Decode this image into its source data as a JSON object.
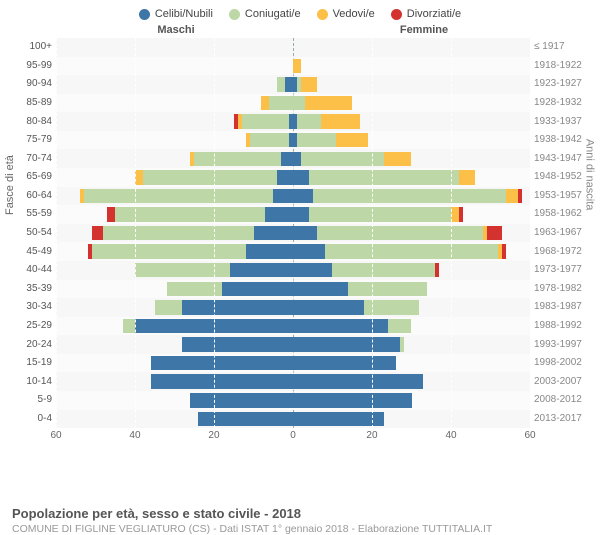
{
  "meta": {
    "title": "Popolazione per età, sesso e stato civile - 2018",
    "subtitle": "COMUNE DI FIGLINE VEGLIATURO (CS) - Dati ISTAT 1° gennaio 2018 - Elaborazione TUTTITALIA.IT",
    "male_label": "Maschi",
    "female_label": "Femmine",
    "left_axis_title": "Fasce di età",
    "right_axis_title": "Anni di nascita"
  },
  "legend": [
    {
      "label": "Celibi/Nubili",
      "color": "#3f76a8"
    },
    {
      "label": "Coniugati/e",
      "color": "#bdd8a6"
    },
    {
      "label": "Vedovi/e",
      "color": "#fcc048"
    },
    {
      "label": "Divorziati/e",
      "color": "#d4322f"
    }
  ],
  "colors": {
    "celibi": "#3f76a8",
    "coniugati": "#bdd8a6",
    "vedovi": "#fcc048",
    "divorziati": "#d4322f",
    "chart_bg": "#f7f7f7",
    "grid": "#ffffff",
    "center": "#9aa"
  },
  "x_axis": {
    "max": 60,
    "ticks": [
      60,
      40,
      20,
      0,
      20,
      40,
      60
    ]
  },
  "age_labels": [
    "100+",
    "95-99",
    "90-94",
    "85-89",
    "80-84",
    "75-79",
    "70-74",
    "65-69",
    "60-64",
    "55-59",
    "50-54",
    "45-49",
    "40-44",
    "35-39",
    "30-34",
    "25-29",
    "20-24",
    "15-19",
    "10-14",
    "5-9",
    "0-4"
  ],
  "birth_labels": [
    "≤ 1917",
    "1918-1922",
    "1923-1927",
    "1928-1932",
    "1933-1937",
    "1938-1942",
    "1943-1947",
    "1948-1952",
    "1953-1957",
    "1958-1962",
    "1963-1967",
    "1968-1972",
    "1973-1977",
    "1978-1982",
    "1983-1987",
    "1988-1992",
    "1993-1997",
    "1998-2002",
    "2003-2007",
    "2008-2012",
    "2013-2017"
  ],
  "rows": [
    {
      "m": {
        "cel": 0,
        "con": 0,
        "ved": 0,
        "div": 0
      },
      "f": {
        "cel": 0,
        "con": 0,
        "ved": 0,
        "div": 0
      }
    },
    {
      "m": {
        "cel": 0,
        "con": 0,
        "ved": 0,
        "div": 0
      },
      "f": {
        "cel": 0,
        "con": 0,
        "ved": 2,
        "div": 0
      }
    },
    {
      "m": {
        "cel": 2,
        "con": 2,
        "ved": 0,
        "div": 0
      },
      "f": {
        "cel": 1,
        "con": 1,
        "ved": 4,
        "div": 0
      }
    },
    {
      "m": {
        "cel": 0,
        "con": 6,
        "ved": 2,
        "div": 0
      },
      "f": {
        "cel": 0,
        "con": 3,
        "ved": 12,
        "div": 0
      }
    },
    {
      "m": {
        "cel": 1,
        "con": 12,
        "ved": 1,
        "div": 1
      },
      "f": {
        "cel": 1,
        "con": 6,
        "ved": 10,
        "div": 0
      }
    },
    {
      "m": {
        "cel": 1,
        "con": 10,
        "ved": 1,
        "div": 0
      },
      "f": {
        "cel": 1,
        "con": 10,
        "ved": 8,
        "div": 0
      }
    },
    {
      "m": {
        "cel": 3,
        "con": 22,
        "ved": 1,
        "div": 0
      },
      "f": {
        "cel": 2,
        "con": 21,
        "ved": 7,
        "div": 0
      }
    },
    {
      "m": {
        "cel": 4,
        "con": 34,
        "ved": 2,
        "div": 0
      },
      "f": {
        "cel": 4,
        "con": 38,
        "ved": 4,
        "div": 0
      }
    },
    {
      "m": {
        "cel": 5,
        "con": 48,
        "ved": 1,
        "div": 0
      },
      "f": {
        "cel": 5,
        "con": 49,
        "ved": 3,
        "div": 1
      }
    },
    {
      "m": {
        "cel": 7,
        "con": 38,
        "ved": 0,
        "div": 2
      },
      "f": {
        "cel": 4,
        "con": 36,
        "ved": 2,
        "div": 1
      }
    },
    {
      "m": {
        "cel": 10,
        "con": 38,
        "ved": 0,
        "div": 3
      },
      "f": {
        "cel": 6,
        "con": 42,
        "ved": 1,
        "div": 4
      }
    },
    {
      "m": {
        "cel": 12,
        "con": 39,
        "ved": 0,
        "div": 1
      },
      "f": {
        "cel": 8,
        "con": 44,
        "ved": 1,
        "div": 1
      }
    },
    {
      "m": {
        "cel": 16,
        "con": 24,
        "ved": 0,
        "div": 0
      },
      "f": {
        "cel": 10,
        "con": 26,
        "ved": 0,
        "div": 1
      }
    },
    {
      "m": {
        "cel": 18,
        "con": 14,
        "ved": 0,
        "div": 0
      },
      "f": {
        "cel": 14,
        "con": 20,
        "ved": 0,
        "div": 0
      }
    },
    {
      "m": {
        "cel": 28,
        "con": 7,
        "ved": 0,
        "div": 0
      },
      "f": {
        "cel": 18,
        "con": 14,
        "ved": 0,
        "div": 0
      }
    },
    {
      "m": {
        "cel": 40,
        "con": 3,
        "ved": 0,
        "div": 0
      },
      "f": {
        "cel": 24,
        "con": 6,
        "ved": 0,
        "div": 0
      }
    },
    {
      "m": {
        "cel": 28,
        "con": 0,
        "ved": 0,
        "div": 0
      },
      "f": {
        "cel": 27,
        "con": 1,
        "ved": 0,
        "div": 0
      }
    },
    {
      "m": {
        "cel": 36,
        "con": 0,
        "ved": 0,
        "div": 0
      },
      "f": {
        "cel": 26,
        "con": 0,
        "ved": 0,
        "div": 0
      }
    },
    {
      "m": {
        "cel": 36,
        "con": 0,
        "ved": 0,
        "div": 0
      },
      "f": {
        "cel": 33,
        "con": 0,
        "ved": 0,
        "div": 0
      }
    },
    {
      "m": {
        "cel": 26,
        "con": 0,
        "ved": 0,
        "div": 0
      },
      "f": {
        "cel": 30,
        "con": 0,
        "ved": 0,
        "div": 0
      }
    },
    {
      "m": {
        "cel": 24,
        "con": 0,
        "ved": 0,
        "div": 0
      },
      "f": {
        "cel": 23,
        "con": 0,
        "ved": 0,
        "div": 0
      }
    }
  ]
}
